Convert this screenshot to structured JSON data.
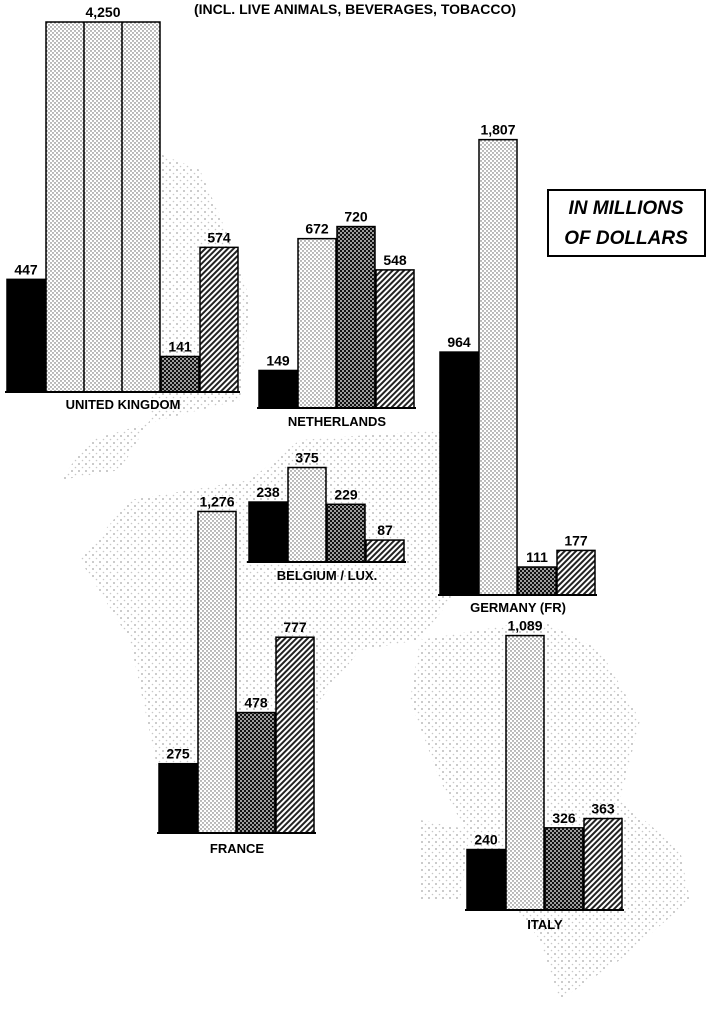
{
  "chart_data": {
    "type": "bar",
    "subtitle": "(INCL. LIVE ANIMALS, BEVERAGES, TOBACCO)",
    "note": [
      "IN MILLIONS",
      "OF DOLLARS"
    ],
    "fills": [
      "solid",
      "dotted",
      "cross-hatched",
      "hatched"
    ],
    "groups": [
      {
        "name": "UNITED KINGDOM",
        "values": [
          447,
          4250,
          141,
          574
        ],
        "value_labels": [
          "447",
          "4,250",
          "141",
          "574"
        ]
      },
      {
        "name": "NETHERLANDS",
        "values": [
          149,
          672,
          720,
          548
        ],
        "value_labels": [
          "149",
          "672",
          "720",
          "548"
        ]
      },
      {
        "name": "BELGIUM / LUX.",
        "values": [
          238,
          375,
          229,
          87
        ],
        "value_labels": [
          "238",
          "375",
          "229",
          "87"
        ]
      },
      {
        "name": "GERMANY (FR)",
        "values": [
          964,
          1807,
          111,
          177
        ],
        "value_labels": [
          "964",
          "1,807",
          "111",
          "177"
        ]
      },
      {
        "name": "FRANCE",
        "values": [
          275,
          1276,
          478,
          777
        ],
        "value_labels": [
          "275",
          "1,276",
          "478",
          "777"
        ]
      },
      {
        "name": "ITALY",
        "values": [
          240,
          1089,
          326,
          363
        ],
        "value_labels": [
          "240",
          "1,089",
          "326",
          "363"
        ]
      }
    ]
  }
}
